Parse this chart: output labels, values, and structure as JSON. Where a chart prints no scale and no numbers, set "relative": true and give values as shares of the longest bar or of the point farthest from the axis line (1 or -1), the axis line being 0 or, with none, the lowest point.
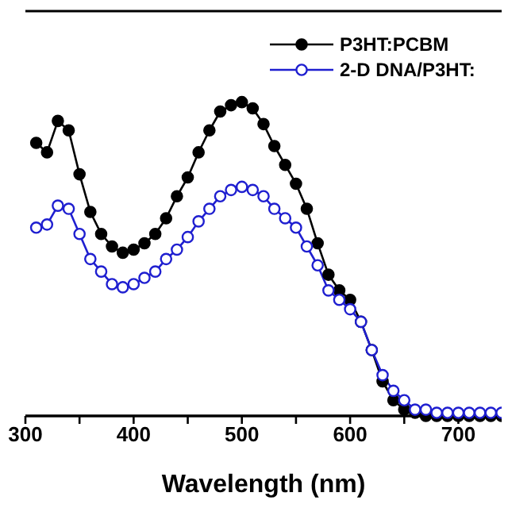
{
  "chart_data": {
    "type": "line",
    "relative": true,
    "xlabel": "Wavelength (nm)",
    "x": [
      310,
      320,
      330,
      340,
      350,
      360,
      370,
      380,
      390,
      400,
      410,
      420,
      430,
      440,
      450,
      460,
      470,
      480,
      490,
      500,
      510,
      520,
      530,
      540,
      550,
      560,
      570,
      580,
      590,
      600,
      610,
      620,
      630,
      640,
      650,
      660,
      670,
      680,
      690,
      700,
      710,
      720,
      730,
      740
    ],
    "series": [
      {
        "name": "P3HT:PCBM",
        "color": "#000000",
        "values": [
          0.87,
          0.84,
          0.94,
          0.91,
          0.77,
          0.65,
          0.58,
          0.54,
          0.52,
          0.53,
          0.55,
          0.58,
          0.63,
          0.7,
          0.76,
          0.84,
          0.91,
          0.97,
          0.99,
          1,
          0.98,
          0.93,
          0.86,
          0.8,
          0.74,
          0.66,
          0.55,
          0.45,
          0.4,
          0.37,
          0.3,
          0.21,
          0.11,
          0.05,
          0.02,
          0.01,
          0,
          0,
          0,
          0,
          0,
          0,
          0,
          0
        ]
      },
      {
        "name": "2-D DNA/P3HT:",
        "color": "#1f1fd0",
        "values": [
          0.6,
          0.61,
          0.67,
          0.66,
          0.58,
          0.5,
          0.46,
          0.42,
          0.41,
          0.42,
          0.44,
          0.46,
          0.5,
          0.53,
          0.57,
          0.62,
          0.66,
          0.7,
          0.72,
          0.73,
          0.72,
          0.7,
          0.66,
          0.63,
          0.6,
          0.54,
          0.48,
          0.4,
          0.37,
          0.34,
          0.3,
          0.21,
          0.13,
          0.08,
          0.05,
          0.02,
          0.02,
          0.01,
          0.01,
          0.01,
          0.01,
          0.01,
          0.01,
          0.01
        ]
      }
    ],
    "xlim": [
      300,
      740
    ],
    "xticks": [
      300,
      {
        "value": 350,
        "label": null
      },
      400,
      {
        "value": 450,
        "label": null
      },
      500,
      {
        "value": 550,
        "label": null
      },
      600,
      {
        "value": 650,
        "label": null
      },
      700
    ],
    "marker": "circle",
    "line_style": "solid",
    "legend": "top right",
    "grid": false
  }
}
